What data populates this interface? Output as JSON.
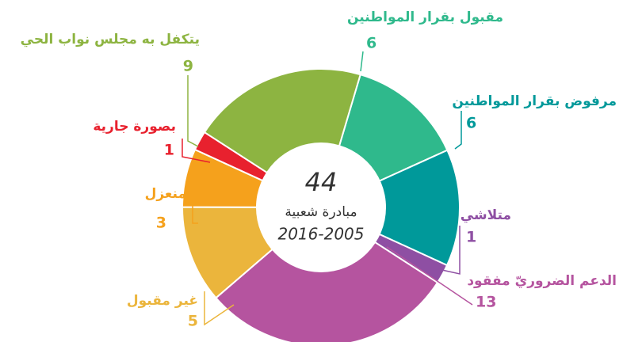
{
  "chart_data": {
    "type": "donut",
    "center_value": 44,
    "center_label": "مبادرة شعبية",
    "center_period": "2016-2005",
    "categories": [
      "مقبول بقرار المواطنين",
      "مرفوض بقرار المواطنين",
      "متلاشي",
      "الدعم الضروريّ مفقود",
      "غير مقبول",
      "منعزل",
      "بصورة جارية",
      "يتكفل به مجلس نواب الحي"
    ],
    "values": [
      6,
      6,
      1,
      13,
      5,
      3,
      1,
      9
    ],
    "colors": [
      "#2fb98c",
      "#00999a",
      "#8e4fa3",
      "#b5549f",
      "#ebb53c",
      "#f5a11c",
      "#e8212e",
      "#8db441"
    ]
  }
}
